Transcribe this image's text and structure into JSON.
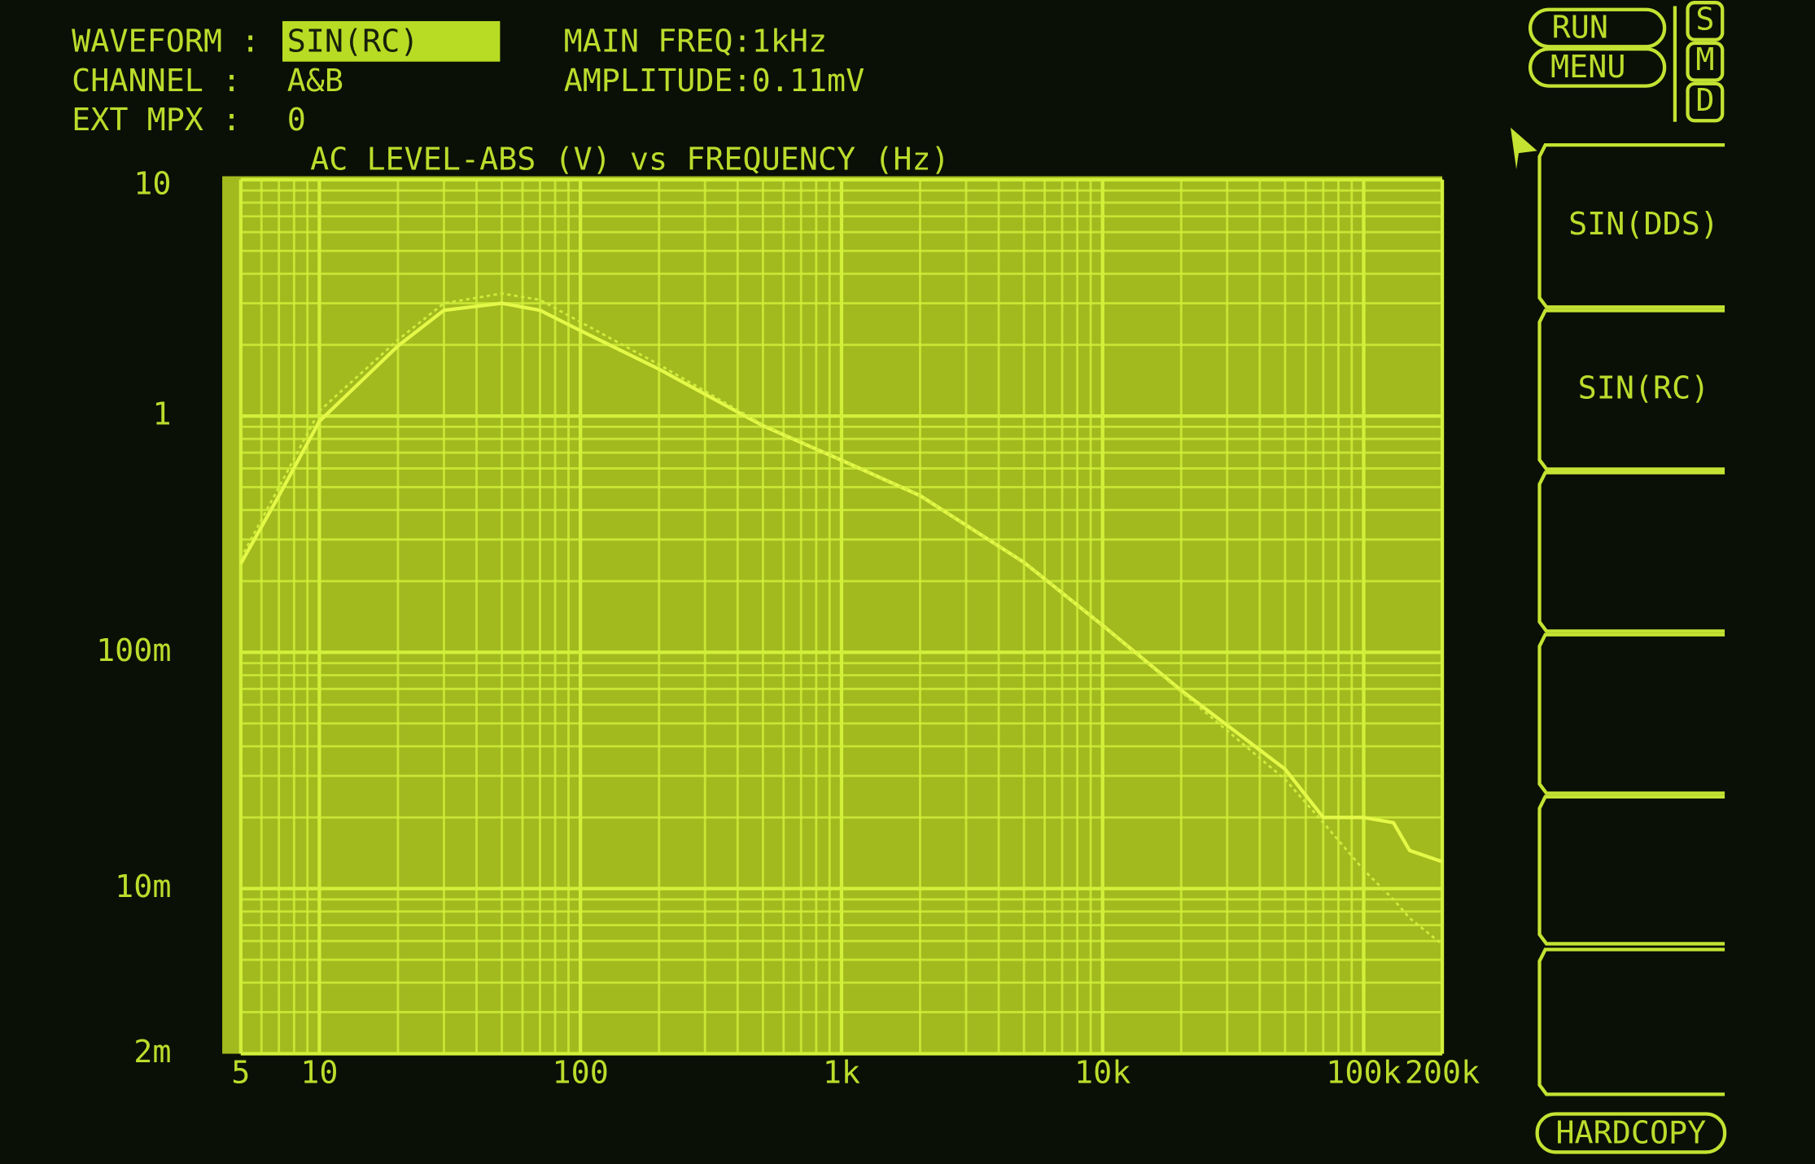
{
  "header": {
    "waveform_label": "WAVEFORM :",
    "waveform_value": "SIN(RC)",
    "channel_label": "CHANNEL :",
    "channel_value": "A&B",
    "ext_mpx_label": "EXT MPX :",
    "ext_mpx_value": "0",
    "main_freq": "MAIN FREQ:1kHz",
    "amplitude": "AMPLITUDE:0.11mV"
  },
  "menu": {
    "run": "RUN",
    "menu": "MENU",
    "modes": [
      "S",
      "M",
      "D"
    ],
    "softkeys": [
      "SIN(DDS)",
      "SIN(RC)"
    ],
    "hardcopy": "HARDCOPY"
  },
  "chart_data": {
    "type": "line",
    "title": "AC LEVEL-ABS (V) vs FREQUENCY (Hz)",
    "x": [
      5,
      7,
      10,
      20,
      30,
      50,
      70,
      100,
      200,
      500,
      1000,
      2000,
      5000,
      10000,
      20000,
      50000,
      70000,
      100000,
      130000,
      150000,
      200000
    ],
    "series": [
      {
        "color": "#e4f848",
        "values": [
          0.237,
          0.46,
          0.95,
          1.98,
          2.8,
          3.0,
          2.8,
          2.3,
          1.58,
          0.91,
          0.65,
          0.46,
          0.24,
          0.13,
          0.069,
          0.032,
          0.02,
          0.02,
          0.019,
          0.0145,
          0.013
        ]
      },
      {
        "color": "#d0ec3c",
        "dashed": true,
        "values": [
          0.25,
          0.5,
          1.05,
          2.1,
          3.0,
          3.3,
          3.1,
          2.5,
          1.65,
          0.92,
          0.65,
          0.46,
          0.24,
          0.13,
          0.068,
          0.029,
          0.019,
          0.012,
          0.009,
          0.0075,
          0.0058
        ]
      }
    ],
    "xlim": [
      5,
      200000
    ],
    "ylim": [
      0.002,
      10
    ],
    "xticks": [
      5,
      10,
      100,
      {
        "value": 1000,
        "label": "1k"
      },
      {
        "value": 10000,
        "label": "10k"
      },
      {
        "value": 100000,
        "label": "100k"
      },
      {
        "value": 200000,
        "label": "200k"
      }
    ],
    "yticks": [
      10,
      1,
      {
        "value": 0.1,
        "label": "100m"
      },
      {
        "value": 0.01,
        "label": "10m"
      },
      {
        "value": 0.002,
        "label": "2m"
      }
    ],
    "log_x": true,
    "log_y": true,
    "grid": true,
    "plot_color": "#a2ba1e",
    "grid_color": "#d2f03a"
  }
}
